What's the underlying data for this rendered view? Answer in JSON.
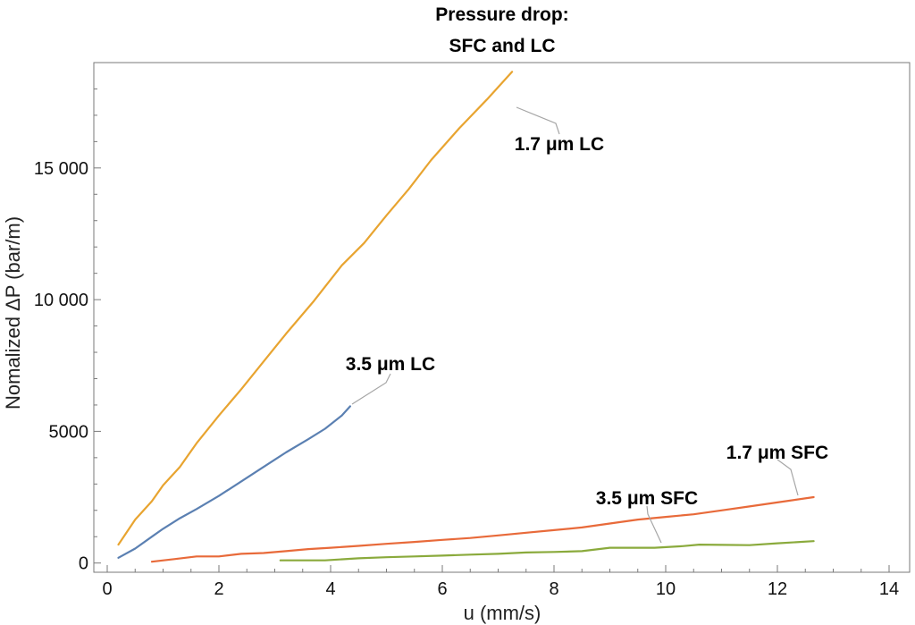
{
  "chart_data": {
    "type": "line",
    "title_lines": [
      "Pressure drop:",
      "SFC and LC"
    ],
    "xlabel": "u (mm/s)",
    "ylabel": "Nomalized ΔP (bar/m)",
    "xlim": [
      0,
      14
    ],
    "ylim": [
      -350,
      19000
    ],
    "x_ticks": [
      0,
      2,
      4,
      6,
      8,
      10,
      12,
      14
    ],
    "y_ticks": [
      0,
      5000,
      10000,
      15000
    ],
    "x_tick_labels": [
      "0",
      "2",
      "4",
      "6",
      "8",
      "10",
      "12",
      "14"
    ],
    "y_tick_labels": [
      "0",
      "5000",
      "10 000",
      "15 000"
    ],
    "grid": false,
    "series": [
      {
        "name": "1.7 μm LC",
        "color": "#e8a430",
        "x": [
          0.2,
          0.5,
          0.8,
          1.0,
          1.3,
          1.6,
          2.0,
          2.4,
          2.8,
          3.2,
          3.7,
          4.2,
          4.6,
          5.0,
          5.4,
          5.8,
          6.3,
          6.8,
          7.25
        ],
        "y": [
          700,
          1650,
          2350,
          2950,
          3650,
          4550,
          5600,
          6600,
          7650,
          8700,
          9950,
          11300,
          12150,
          13200,
          14200,
          15300,
          16500,
          17600,
          18650
        ]
      },
      {
        "name": "3.5 μm LC",
        "color": "#5b80b2",
        "x": [
          0.2,
          0.5,
          0.8,
          1.0,
          1.3,
          1.6,
          2.0,
          2.4,
          2.8,
          3.2,
          3.6,
          3.9,
          4.2,
          4.35
        ],
        "y": [
          200,
          550,
          1000,
          1300,
          1700,
          2050,
          2550,
          3100,
          3650,
          4200,
          4700,
          5100,
          5600,
          5950
        ]
      },
      {
        "name": "1.7 μm SFC",
        "color": "#e86a3a",
        "x": [
          0.8,
          1.2,
          1.6,
          2.0,
          2.4,
          2.8,
          3.2,
          3.6,
          4.0,
          4.5,
          5.0,
          5.5,
          6.0,
          6.5,
          7.0,
          7.5,
          8.0,
          8.5,
          9.0,
          9.5,
          10.0,
          10.5,
          11.0,
          11.5,
          12.0,
          12.65
        ],
        "y": [
          50,
          150,
          250,
          250,
          350,
          380,
          450,
          530,
          580,
          650,
          730,
          800,
          880,
          950,
          1050,
          1150,
          1250,
          1350,
          1500,
          1650,
          1750,
          1850,
          2000,
          2150,
          2300,
          2500
        ]
      },
      {
        "name": "3.5 μm SFC",
        "color": "#8aaa3c",
        "x": [
          3.1,
          3.5,
          3.9,
          4.5,
          5.0,
          5.5,
          6.0,
          6.5,
          7.0,
          7.5,
          8.0,
          8.5,
          9.0,
          9.8,
          10.3,
          10.6,
          11.0,
          11.5,
          12.0,
          12.65
        ],
        "y": [
          100,
          100,
          100,
          180,
          220,
          250,
          280,
          320,
          350,
          400,
          420,
          450,
          580,
          580,
          640,
          700,
          690,
          680,
          750,
          830
        ]
      }
    ]
  }
}
